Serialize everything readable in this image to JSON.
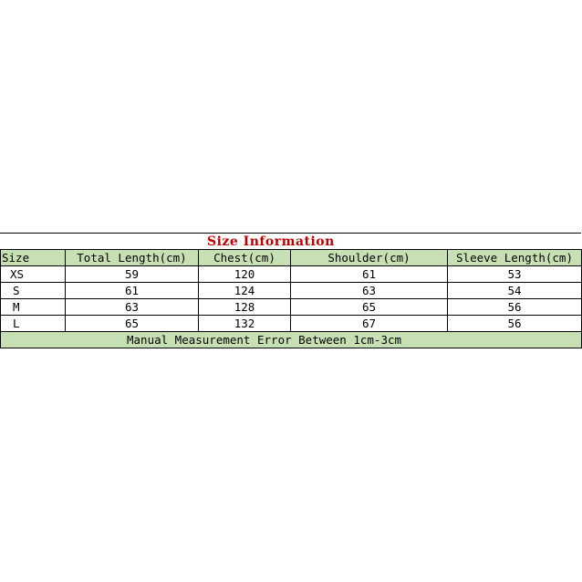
{
  "title": "Size Information",
  "headers": [
    "Size",
    "Total Length(cm)",
    "Chest(cm)",
    "Shoulder(cm)",
    "Sleeve Length(cm)"
  ],
  "rows": [
    [
      "XS",
      "59",
      "120",
      "61",
      "53"
    ],
    [
      "S",
      "61",
      "124",
      "63",
      "54"
    ],
    [
      "M",
      "63",
      "128",
      "65",
      "56"
    ],
    [
      "L",
      "65",
      "132",
      "67",
      "56"
    ]
  ],
  "footer": "Manual Measurement Error Between 1cm-3cm",
  "colors": {
    "title": "#c00000",
    "header_bg": "#c6e0b4"
  }
}
